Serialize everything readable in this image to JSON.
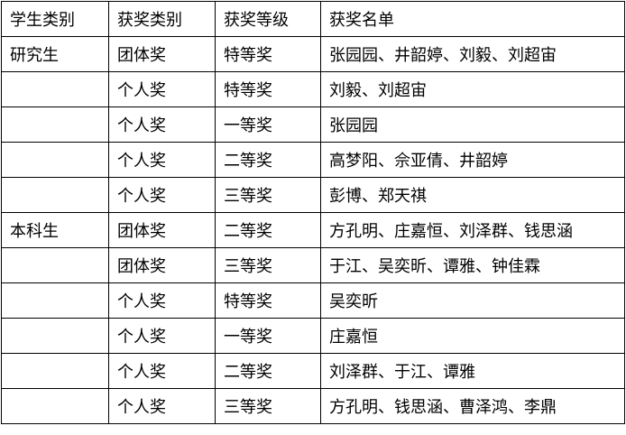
{
  "table": {
    "headers": [
      "学生类别",
      "获奖类别",
      "获奖等级",
      "获奖名单"
    ],
    "rows": [
      [
        "研究生",
        "团体奖",
        "特等奖",
        "张园园、井韶婷、刘毅、刘超宙"
      ],
      [
        "",
        "个人奖",
        "特等奖",
        "刘毅、刘超宙"
      ],
      [
        "",
        "个人奖",
        "一等奖",
        "张园园"
      ],
      [
        "",
        "个人奖",
        "二等奖",
        "高梦阳、佘亚倩、井韶婷"
      ],
      [
        "",
        "个人奖",
        "三等奖",
        "彭博、郑天祺"
      ],
      [
        "本科生",
        "团体奖",
        "二等奖",
        "方孔明、庄嘉恒、刘泽群、钱思涵"
      ],
      [
        "",
        "团体奖",
        "三等奖",
        "于江、吴奕昕、谭雅、钟佳霖"
      ],
      [
        "",
        "个人奖",
        "特等奖",
        "吴奕昕"
      ],
      [
        "",
        "个人奖",
        "一等奖",
        "庄嘉恒"
      ],
      [
        "",
        "个人奖",
        "二等奖",
        "刘泽群、于江、谭雅"
      ],
      [
        "",
        "个人奖",
        "三等奖",
        "方孔明、钱思涵、曹泽鸿、李鼎"
      ]
    ]
  }
}
